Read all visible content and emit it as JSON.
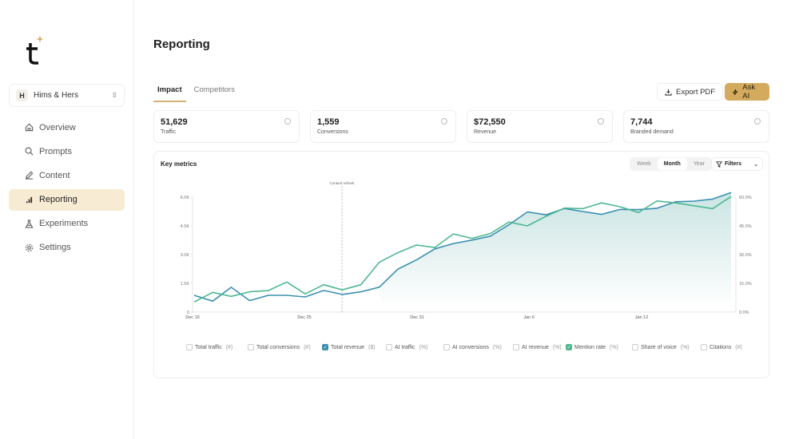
{
  "brand": {
    "logo_text": "t",
    "accent": "#d4aa5e"
  },
  "workspace": {
    "initial": "H",
    "name": "Hims & Hers"
  },
  "sidebar": {
    "items": [
      {
        "label": "Overview",
        "icon": "home-icon"
      },
      {
        "label": "Prompts",
        "icon": "search-icon"
      },
      {
        "label": "Content",
        "icon": "pencil-icon"
      },
      {
        "label": "Reporting",
        "icon": "bar-chart-icon",
        "active": true
      },
      {
        "label": "Experiments",
        "icon": "flask-icon"
      },
      {
        "label": "Settings",
        "icon": "gear-icon"
      }
    ]
  },
  "page": {
    "title": "Reporting"
  },
  "tabs": [
    {
      "label": "Impact",
      "active": true
    },
    {
      "label": "Competitors"
    }
  ],
  "actions": {
    "export": "Export PDF",
    "ask_ai": "Ask AI"
  },
  "stats": [
    {
      "value": "51,629",
      "label": "Traffic"
    },
    {
      "value": "1,559",
      "label": "Conversions"
    },
    {
      "value": "$72,550",
      "label": "Revenue"
    },
    {
      "value": "7,744",
      "label": "Branded demand"
    }
  ],
  "chart_card": {
    "title": "Key metrics",
    "periods": [
      "Week",
      "Month",
      "Year"
    ],
    "selected_period": "Month",
    "filters": "Filters"
  },
  "legend": [
    {
      "label": "Total traffic",
      "unit": "(#)",
      "checked": false
    },
    {
      "label": "Total conversions",
      "unit": "(#)",
      "checked": false
    },
    {
      "label": "Total revenue",
      "unit": "($)",
      "checked": true,
      "color": "#3a8fb0"
    },
    {
      "label": "AI traffic",
      "unit": "(%)",
      "checked": false
    },
    {
      "label": "AI conversions",
      "unit": "(%)",
      "checked": false
    },
    {
      "label": "AI revenue",
      "unit": "(%)",
      "checked": false
    },
    {
      "label": "Mention rate",
      "unit": "(%)",
      "checked": true,
      "color": "#4cb890"
    },
    {
      "label": "Share of voice",
      "unit": "(%)",
      "checked": false
    },
    {
      "label": "Citations",
      "unit": "(#)",
      "checked": false
    }
  ],
  "chart_data": {
    "type": "line",
    "x_ticks": [
      "Dec 19",
      "Dec 25",
      "Dec 31",
      "Jan 6",
      "Jan 12"
    ],
    "y_left": {
      "ticks": [
        "0",
        "1.5K",
        "3.0K",
        "4.5K",
        "6.0K"
      ],
      "lim": [
        0,
        6000
      ]
    },
    "y_right": {
      "ticks": [
        "0.0%",
        "15.0%",
        "30.0%",
        "45.0%",
        "60.0%"
      ],
      "lim": [
        0,
        60
      ]
    },
    "annotation": "Content refresh",
    "series": [
      {
        "name": "Total revenue",
        "axis": "left",
        "color": "#3a8fb0",
        "fill": true,
        "values": [
          877,
          571,
          1295,
          599,
          877,
          877,
          793,
          1128,
          919,
          1060,
          1300,
          2241,
          2720,
          3300,
          3580,
          3760,
          3968,
          4560,
          5230,
          5080,
          5410,
          5250,
          5100,
          5360,
          5350,
          5420,
          5760,
          5791,
          5900,
          6237
        ]
      },
      {
        "name": "Mention rate",
        "axis": "right",
        "color": "#4cb890",
        "values": [
          5.3,
          10.3,
          8.2,
          10.6,
          11.2,
          15.7,
          9.5,
          14.3,
          11.6,
          14.3,
          26,
          31,
          35,
          33.7,
          40.8,
          38.5,
          41,
          47,
          45,
          50,
          54.3,
          54,
          57,
          55,
          52,
          58,
          57,
          55.5,
          54,
          60.3
        ]
      }
    ]
  }
}
